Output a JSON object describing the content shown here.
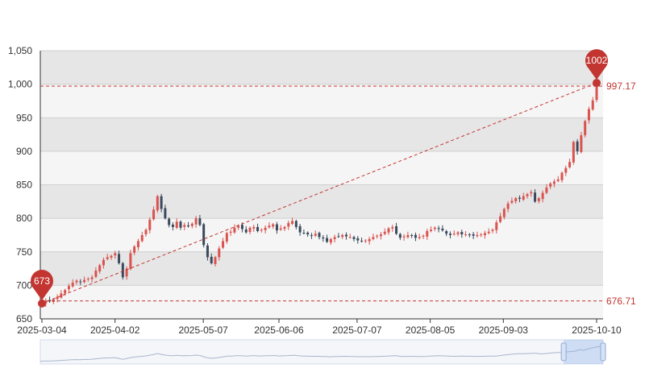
{
  "chart_data": {
    "type": "candlestick",
    "x_start": "2025-03-04",
    "x_end": "2025-10-10",
    "x_ticks": [
      "2025-03-04",
      "2025-04-02",
      "2025-05-07",
      "2025-06-06",
      "2025-07-07",
      "2025-08-05",
      "2025-09-03",
      "2025-10-10"
    ],
    "y_ticks": [
      "650",
      "700",
      "750",
      "800",
      "850",
      "900",
      "950",
      "1,000",
      "1,050"
    ],
    "ylim": [
      650,
      1050
    ],
    "grid": "horizontal alternating bands",
    "colors": {
      "up": "#d9534f",
      "down": "#3b4a5c",
      "band_dark": "#e6e6e6",
      "band_light": "#f5f5f5",
      "accent": "#c23531"
    },
    "closes": [
      673,
      677,
      676,
      679,
      683,
      688,
      693,
      699,
      704,
      707,
      705,
      708,
      710,
      712,
      722,
      730,
      738,
      742,
      744,
      748,
      733,
      712,
      725,
      748,
      758,
      766,
      775,
      783,
      798,
      813,
      833,
      814,
      800,
      790,
      787,
      795,
      786,
      790,
      788,
      792,
      800,
      790,
      760,
      742,
      733,
      742,
      755,
      766,
      778,
      780,
      786,
      789,
      784,
      779,
      786,
      787,
      781,
      783,
      786,
      789,
      791,
      782,
      785,
      787,
      793,
      796,
      787,
      779,
      778,
      776,
      774,
      777,
      772,
      770,
      765,
      769,
      772,
      773,
      775,
      773,
      772,
      769,
      767,
      766,
      767,
      769,
      772,
      774,
      776,
      780,
      785,
      787,
      777,
      771,
      773,
      775,
      774,
      771,
      772,
      774,
      781,
      783,
      786,
      784,
      782,
      777,
      775,
      777,
      779,
      776,
      776,
      775,
      774,
      775,
      776,
      778,
      780,
      783,
      794,
      803,
      814,
      822,
      826,
      830,
      829,
      833,
      836,
      839,
      825,
      830,
      838,
      846,
      852,
      855,
      858,
      868,
      875,
      884,
      914,
      900,
      924,
      945,
      963,
      976,
      997.17
    ],
    "max_point": {
      "label": "1002",
      "value": 1002
    },
    "min_point": {
      "label": "673",
      "value": 673
    },
    "ref_lines": [
      {
        "label": "997.17",
        "value": 997.17
      },
      {
        "label": "676.71",
        "value": 676.71
      }
    ],
    "dataZoom": {
      "start_fraction": 0.93,
      "end_fraction": 1.0
    }
  }
}
